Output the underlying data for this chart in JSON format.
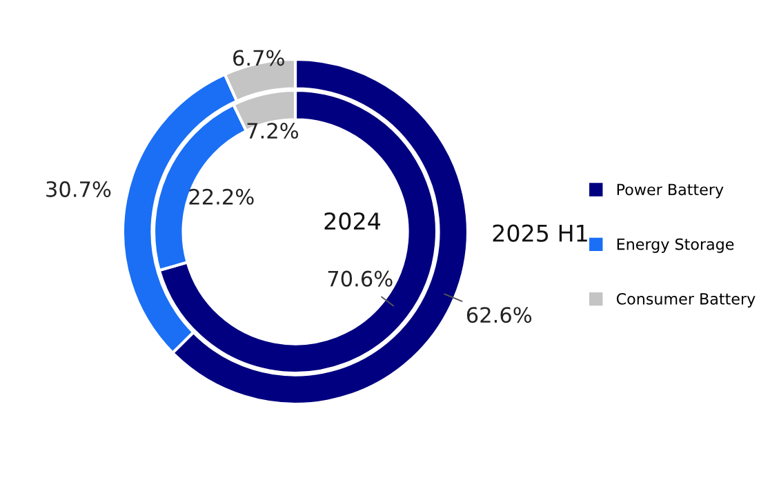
{
  "chart_data": {
    "type": "donut",
    "categories": [
      "Power Battery",
      "Energy Storage",
      "Consumer Battery"
    ],
    "colors": [
      "#000080",
      "#1a6ff5",
      "#c4c4c4"
    ],
    "legend": "right",
    "series": [
      {
        "name": "2025 H1",
        "values": [
          62.6,
          30.7,
          6.7
        ],
        "value_labels": [
          "62.6%",
          "30.7%",
          "6.7%"
        ]
      },
      {
        "name": "2024",
        "values": [
          70.6,
          22.2,
          7.2
        ],
        "value_labels": [
          "70.6%",
          "22.2%",
          "7.2%"
        ]
      }
    ]
  }
}
